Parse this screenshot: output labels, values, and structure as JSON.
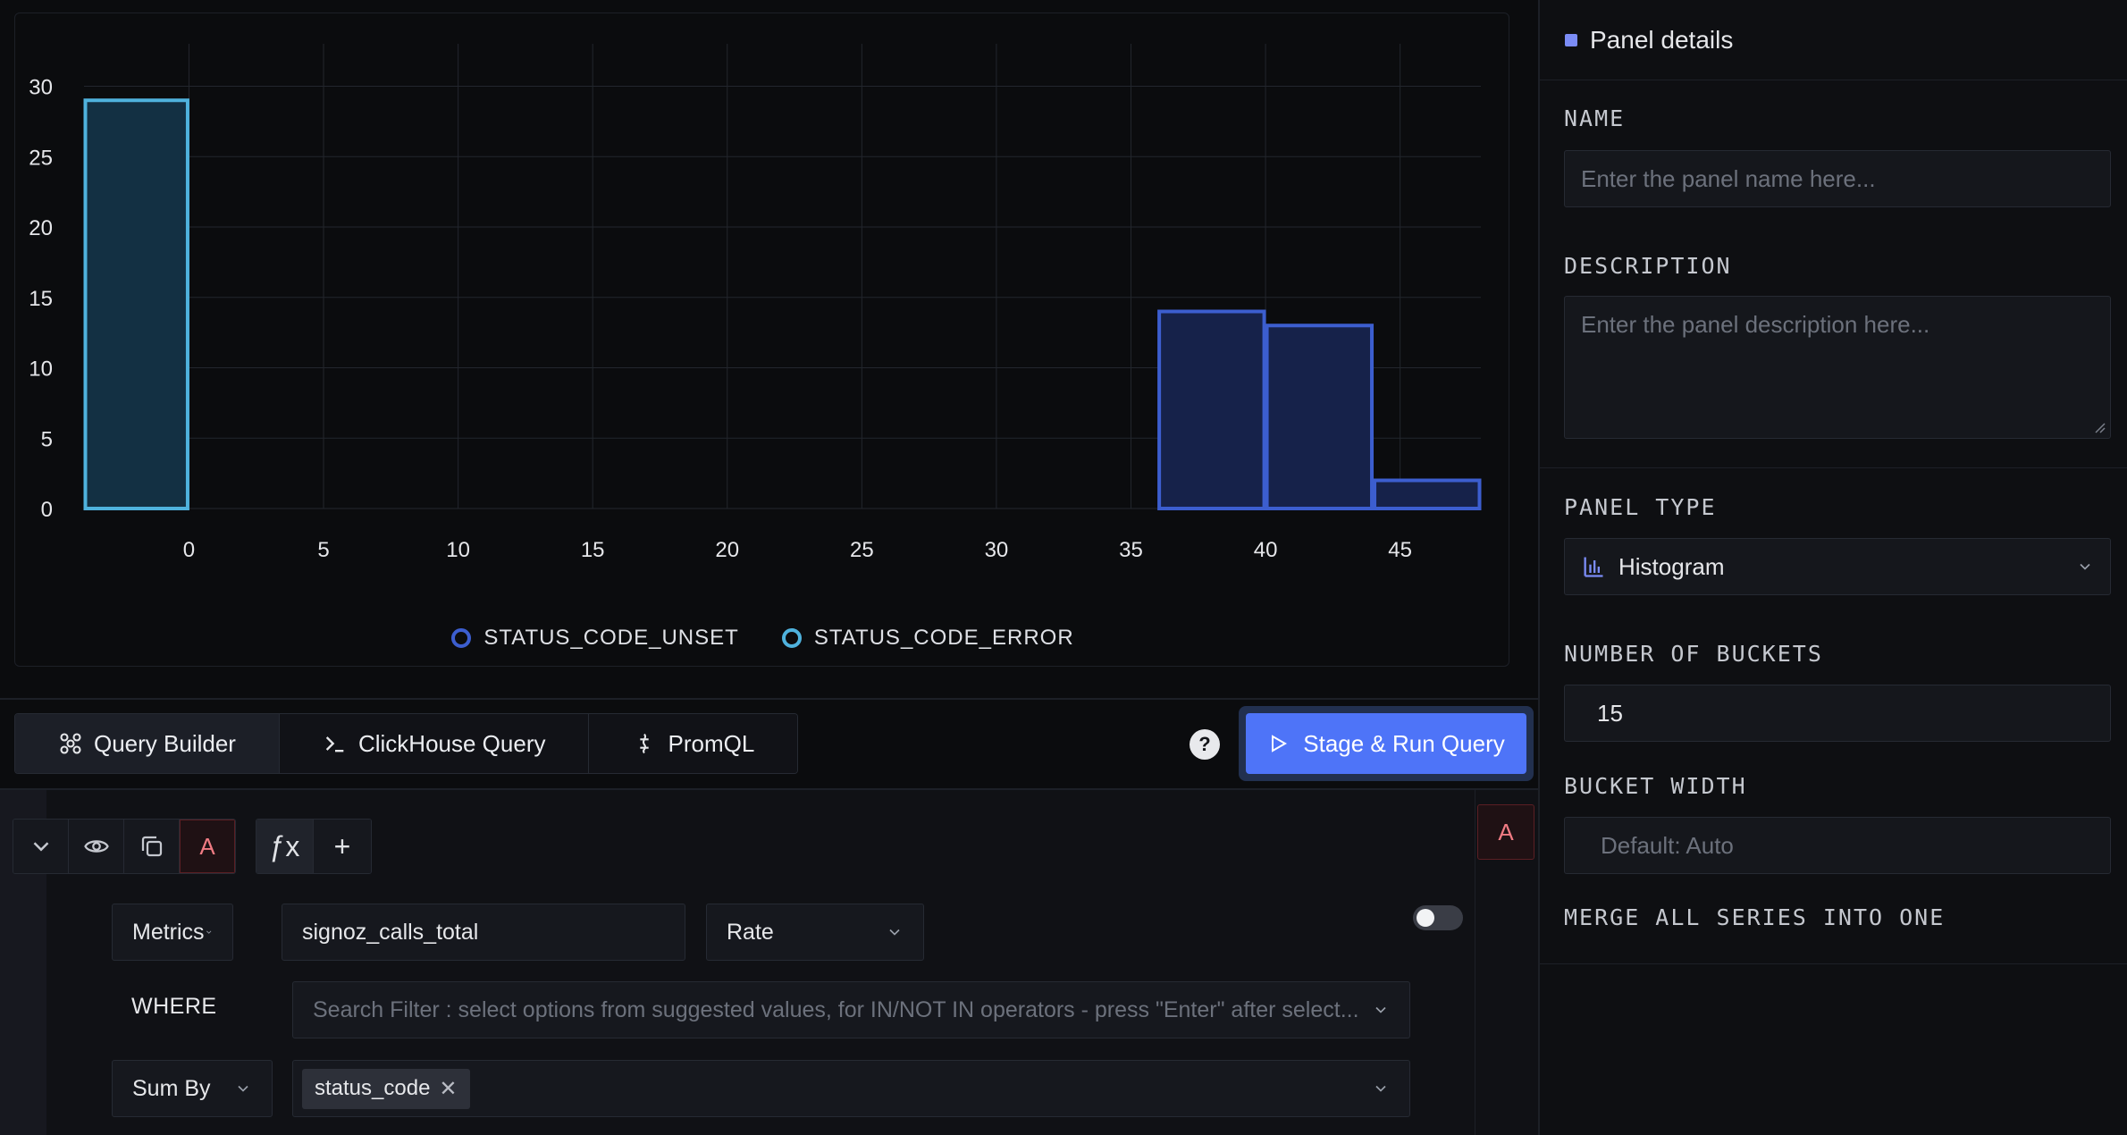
{
  "chart_data": {
    "type": "bar",
    "subtype": "histogram",
    "title": "",
    "xlabel": "",
    "ylabel": "",
    "ylim": [
      0,
      32
    ],
    "xlim": [
      -3.9,
      48
    ],
    "x_ticks": [
      0,
      5,
      10,
      15,
      20,
      25,
      30,
      35,
      40,
      45
    ],
    "y_ticks": [
      0,
      5,
      10,
      15,
      20,
      25,
      30
    ],
    "grid": true,
    "legend_position": "bottom",
    "series": [
      {
        "name": "STATUS_CODE_UNSET",
        "color": "#3c5ecf",
        "bins": [
          {
            "x0": 36,
            "x1": 40,
            "count": 14
          },
          {
            "x0": 40,
            "x1": 44,
            "count": 13
          },
          {
            "x0": 44,
            "x1": 48,
            "count": 2
          }
        ]
      },
      {
        "name": "STATUS_CODE_ERROR",
        "color": "#4fb2dd",
        "bins": [
          {
            "x0": -3.9,
            "x1": 0,
            "count": 29
          }
        ]
      }
    ]
  },
  "tabs": {
    "query_builder": "Query Builder",
    "clickhouse": "ClickHouse Query",
    "promql": "PromQL"
  },
  "help_label": "?",
  "run_button": "Stage & Run Query",
  "query": {
    "letter": "A",
    "right_letter": "A",
    "data_source": "Metrics",
    "metric": "signoz_calls_total",
    "aggregation": "Rate",
    "where_label": "WHERE",
    "where_placeholder": "Search Filter : select options from suggested values, for IN/NOT IN operators - press \"Enter\" after select...",
    "group_op": "Sum By",
    "group_tags": [
      "status_code"
    ],
    "fx_label": "ƒx",
    "add_label": "+"
  },
  "panel": {
    "header": "Panel details",
    "name_label": "NAME",
    "name_placeholder": "Enter the panel name here...",
    "description_label": "DESCRIPTION",
    "description_placeholder": "Enter the panel description here...",
    "panel_type_label": "PANEL TYPE",
    "panel_type_value": "Histogram",
    "buckets_label": "NUMBER OF BUCKETS",
    "buckets_value": "15",
    "bucket_width_label": "BUCKET WIDTH",
    "bucket_width_placeholder": "Default: Auto",
    "merge_label": "MERGE ALL SERIES INTO ONE",
    "merge_enabled": false
  }
}
